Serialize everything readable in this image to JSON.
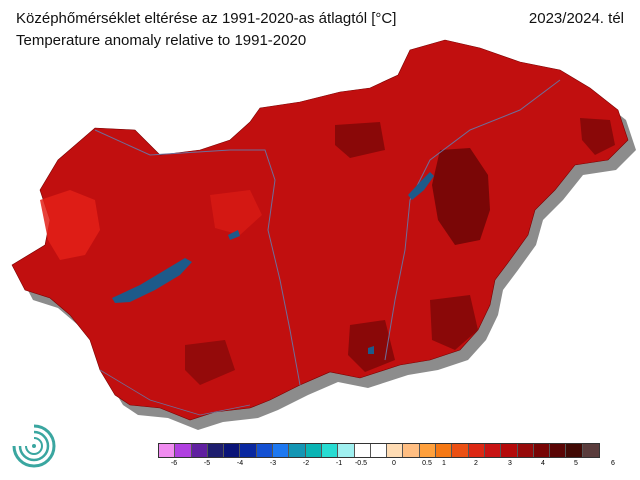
{
  "header": {
    "title_hu": "Középhőmérséklet eltérése az 1991-2020-as átlagtól [°C]",
    "title_en": "Temperature anomaly relative to 1991-2020",
    "season": "2023/2024. tél"
  },
  "map": {
    "base_color": "#c10f0f",
    "lake_color": "#1d5a8a",
    "shadow_color": "#8c8c8c"
  },
  "legend": {
    "colors": [
      "#f08cf0",
      "#b040e0",
      "#6020a0",
      "#1e1e6e",
      "#0a1478",
      "#0a28a0",
      "#1450d2",
      "#1e78f0",
      "#1496b4",
      "#0ab4b4",
      "#28dcd2",
      "#a0f0f0",
      "#ffffff",
      "#ffffff",
      "#ffdcb4",
      "#ffbe82",
      "#ffa03c",
      "#f57814",
      "#eb5014",
      "#dc2814",
      "#c81414",
      "#b40a0a",
      "#960a0a",
      "#780505",
      "#5a0505",
      "#410a05",
      "#5a3c3c"
    ],
    "tick_labels": [
      "-6",
      "-5",
      "-4",
      "-3",
      "-2",
      "-1",
      "-0.5",
      "0",
      "0.5",
      "1",
      "2",
      "3",
      "4",
      "5",
      "6"
    ]
  }
}
